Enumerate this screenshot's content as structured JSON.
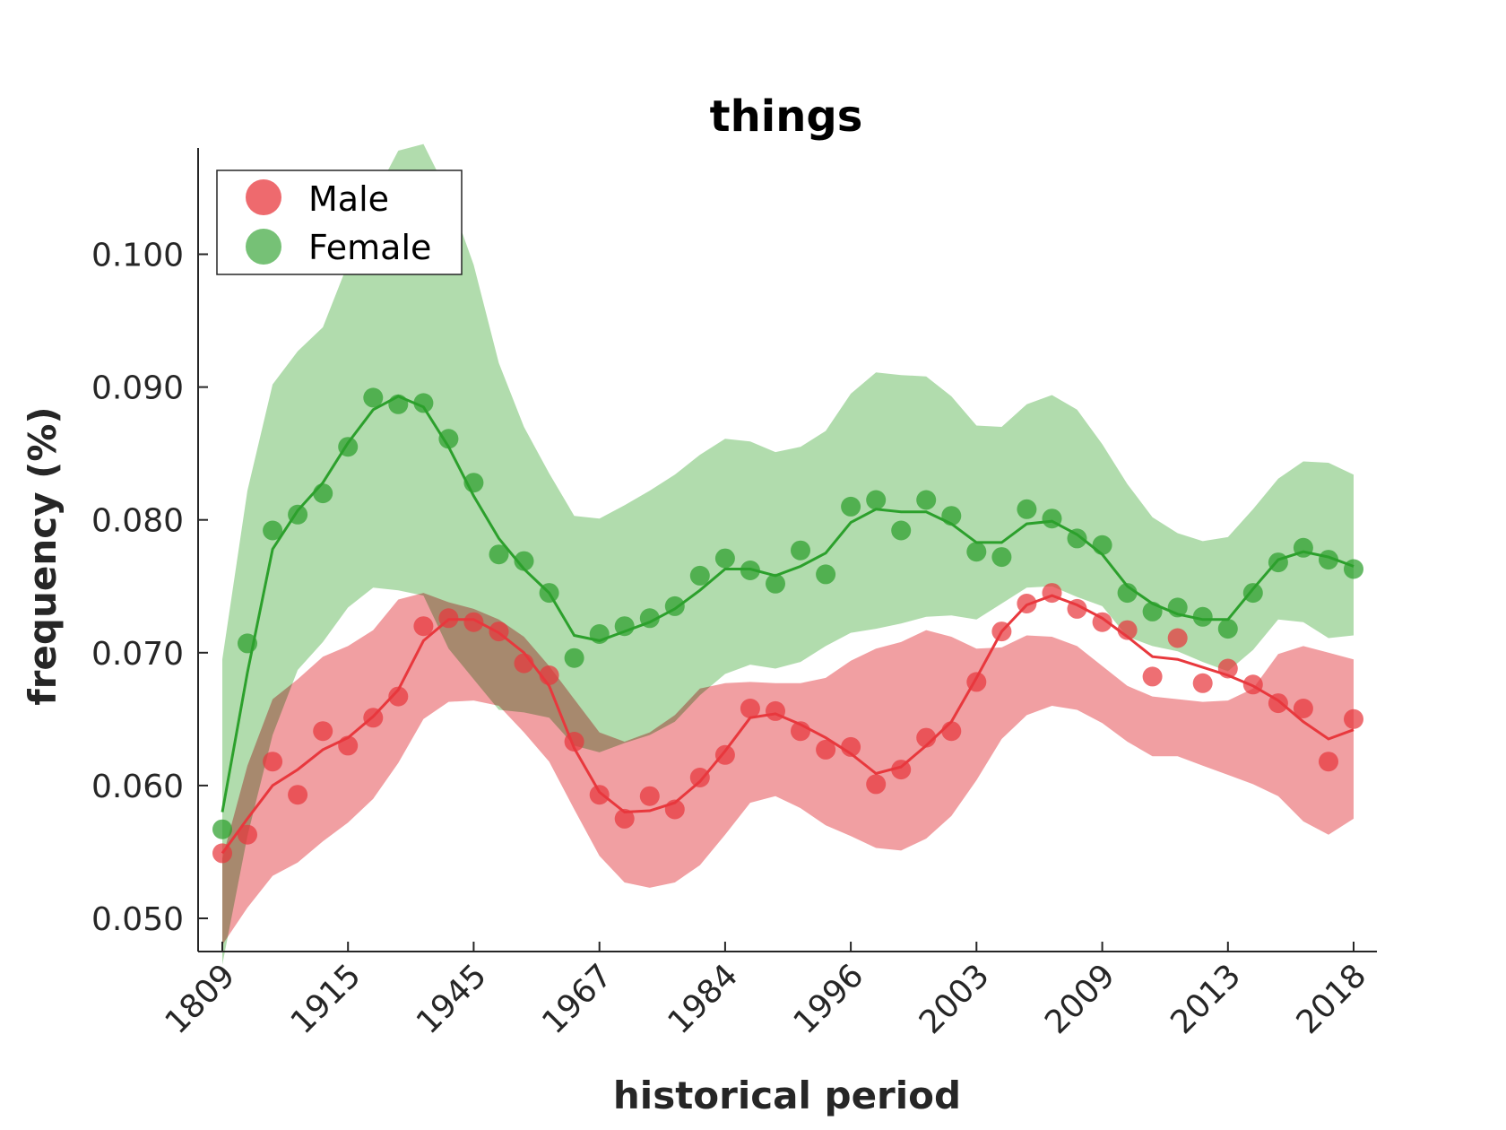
{
  "chart_data": {
    "type": "line",
    "title": "things",
    "xlabel": "historical period",
    "ylabel": "frequency (%)",
    "x_tick_labels": [
      "1809",
      "1915",
      "1945",
      "1967",
      "1984",
      "1996",
      "2003",
      "2009",
      "2013",
      "2018"
    ],
    "y_ticks": [
      0.05,
      0.06,
      0.07,
      0.08,
      0.09,
      0.1
    ],
    "y_tick_labels": [
      "0.050",
      "0.060",
      "0.070",
      "0.080",
      "0.090",
      "0.100"
    ],
    "ylim": [
      0.0475,
      0.108
    ],
    "grid": false,
    "legend_position": "top-left",
    "series": [
      {
        "name": "Male",
        "color": "#e8383d",
        "band_color": "#f09a9d",
        "points": [
          0.0549,
          0.0563,
          0.0618,
          0.0593,
          0.0641,
          0.063,
          0.0651,
          0.0667,
          0.072,
          0.0726,
          0.0723,
          0.0716,
          0.0692,
          0.0683,
          0.0633,
          0.0593,
          0.0575,
          0.0592,
          0.0582,
          0.0606,
          0.0623,
          0.0658,
          0.0656,
          0.0641,
          0.0627,
          0.0629,
          0.0601,
          0.0612,
          0.0636,
          0.0641,
          0.0678,
          0.0716,
          0.0737,
          0.0745,
          0.0733,
          0.0723,
          0.0717,
          0.0682,
          0.0711,
          0.0677,
          0.0688,
          0.0676,
          0.0662,
          0.0658,
          0.0618,
          0.065
        ],
        "trend": [
          0.0549,
          0.0575,
          0.06,
          0.0612,
          0.0627,
          0.0636,
          0.0652,
          0.0672,
          0.0709,
          0.0725,
          0.0725,
          0.0715,
          0.07,
          0.0675,
          0.0628,
          0.0595,
          0.058,
          0.0581,
          0.0587,
          0.0603,
          0.0626,
          0.0651,
          0.0654,
          0.0646,
          0.0636,
          0.0624,
          0.0609,
          0.0614,
          0.063,
          0.0648,
          0.0681,
          0.0716,
          0.0736,
          0.0743,
          0.0736,
          0.0726,
          0.0712,
          0.0697,
          0.0695,
          0.0689,
          0.0683,
          0.0675,
          0.0664,
          0.0648,
          0.0635,
          0.0642
        ],
        "upper": [
          0.0545,
          0.0615,
          0.0665,
          0.068,
          0.0697,
          0.0705,
          0.0717,
          0.074,
          0.0745,
          0.0738,
          0.0733,
          0.0725,
          0.0712,
          0.069,
          0.0665,
          0.064,
          0.0633,
          0.064,
          0.0653,
          0.0673,
          0.0677,
          0.0678,
          0.0677,
          0.0677,
          0.0681,
          0.0694,
          0.0703,
          0.0708,
          0.0717,
          0.0712,
          0.0703,
          0.0704,
          0.0713,
          0.0712,
          0.0705,
          0.069,
          0.0675,
          0.0667,
          0.0665,
          0.0663,
          0.0664,
          0.0673,
          0.0699,
          0.0705,
          0.07,
          0.0695
        ],
        "lower": [
          0.048,
          0.0508,
          0.0532,
          0.0542,
          0.0558,
          0.0572,
          0.059,
          0.0617,
          0.065,
          0.0663,
          0.0664,
          0.066,
          0.064,
          0.0618,
          0.0582,
          0.0547,
          0.0527,
          0.0523,
          0.0527,
          0.054,
          0.0563,
          0.0587,
          0.0592,
          0.0583,
          0.057,
          0.0562,
          0.0553,
          0.0551,
          0.056,
          0.0577,
          0.0604,
          0.0635,
          0.0653,
          0.066,
          0.0657,
          0.0647,
          0.0633,
          0.0622,
          0.0622,
          0.0615,
          0.0608,
          0.0601,
          0.0592,
          0.0573,
          0.0563,
          0.0575
        ]
      },
      {
        "name": "Female",
        "color": "#2ca02c",
        "band_color": "#a9d8a4",
        "points": [
          0.0567,
          0.0707,
          0.0792,
          0.0804,
          0.082,
          0.0855,
          0.0892,
          0.0887,
          0.0888,
          0.0861,
          0.0828,
          0.0774,
          0.0769,
          0.0745,
          0.0696,
          0.0714,
          0.072,
          0.0726,
          0.0735,
          0.0758,
          0.0771,
          0.0762,
          0.0752,
          0.0777,
          0.0759,
          0.081,
          0.0815,
          0.0792,
          0.0815,
          0.0803,
          0.0776,
          0.0772,
          0.0808,
          0.0801,
          0.0786,
          0.0781,
          0.0745,
          0.0731,
          0.0734,
          0.0727,
          0.0718,
          0.0745,
          0.0768,
          0.0779,
          0.077,
          0.0763
        ],
        "trend": [
          0.058,
          0.0685,
          0.0778,
          0.0807,
          0.0828,
          0.0858,
          0.0883,
          0.0893,
          0.0885,
          0.0855,
          0.0818,
          0.0786,
          0.0763,
          0.0745,
          0.0713,
          0.0709,
          0.0716,
          0.0723,
          0.0733,
          0.0747,
          0.0763,
          0.0763,
          0.0758,
          0.0765,
          0.0775,
          0.0798,
          0.0808,
          0.0806,
          0.0806,
          0.0797,
          0.0783,
          0.0783,
          0.0797,
          0.0799,
          0.0789,
          0.0774,
          0.075,
          0.0737,
          0.0729,
          0.0725,
          0.0725,
          0.0748,
          0.077,
          0.0776,
          0.0772,
          0.0765
        ],
        "upper": [
          0.0695,
          0.0822,
          0.0902,
          0.0927,
          0.0945,
          0.0993,
          0.1042,
          0.1078,
          0.1083,
          0.1045,
          0.0992,
          0.0918,
          0.087,
          0.0835,
          0.0803,
          0.0801,
          0.0811,
          0.0822,
          0.0834,
          0.0849,
          0.0861,
          0.0859,
          0.0851,
          0.0855,
          0.0867,
          0.0895,
          0.0911,
          0.0909,
          0.0908,
          0.0893,
          0.0871,
          0.087,
          0.0887,
          0.0894,
          0.0883,
          0.0857,
          0.0827,
          0.0802,
          0.079,
          0.0784,
          0.0787,
          0.0808,
          0.0831,
          0.0844,
          0.0843,
          0.0834
        ],
        "lower": [
          0.0465,
          0.0562,
          0.0638,
          0.0687,
          0.0708,
          0.0734,
          0.0749,
          0.0747,
          0.0743,
          0.0703,
          0.068,
          0.0657,
          0.0655,
          0.0651,
          0.063,
          0.0625,
          0.0632,
          0.0638,
          0.0648,
          0.0668,
          0.0684,
          0.0691,
          0.0688,
          0.0693,
          0.0705,
          0.0715,
          0.0718,
          0.0722,
          0.0727,
          0.0728,
          0.0725,
          0.0737,
          0.0749,
          0.075,
          0.0742,
          0.0735,
          0.0712,
          0.0705,
          0.0701,
          0.0693,
          0.0686,
          0.0702,
          0.0725,
          0.0723,
          0.0711,
          0.0713
        ]
      }
    ]
  }
}
